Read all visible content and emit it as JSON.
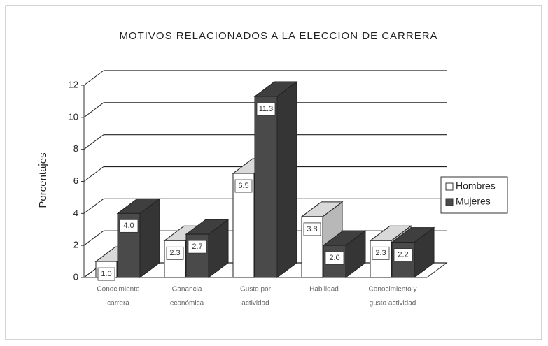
{
  "chart_data": {
    "type": "bar3d",
    "title": "MOTIVOS RELACIONADOS A LA ELECCION DE CARRERA",
    "y_label": "Porcentajes",
    "categories": [
      [
        "Conocimiento",
        "carrera"
      ],
      [
        "Ganancia",
        "económica"
      ],
      [
        "Gusto por",
        "actividad"
      ],
      [
        "Habilidad"
      ],
      [
        "Conocimiento y",
        "gusto actividad"
      ]
    ],
    "series": [
      {
        "name": "Hombres",
        "color": "#ffffff",
        "values": [
          1.0,
          2.3,
          6.5,
          3.8,
          2.3
        ],
        "value_labels": [
          "1.0",
          "2.3",
          "6.5",
          "3.8",
          "2.3"
        ]
      },
      {
        "name": "Mujeres",
        "color": "#4a4a4a",
        "values": [
          4.0,
          2.7,
          11.3,
          2.0,
          2.2
        ],
        "value_labels": [
          "4.0",
          "2.7",
          "11.3",
          "2.0",
          "2.2"
        ]
      }
    ],
    "ylim": [
      0,
      12
    ],
    "yticks": [
      0,
      2,
      4,
      6,
      8,
      10,
      12
    ],
    "grid": true,
    "legend": "right"
  }
}
